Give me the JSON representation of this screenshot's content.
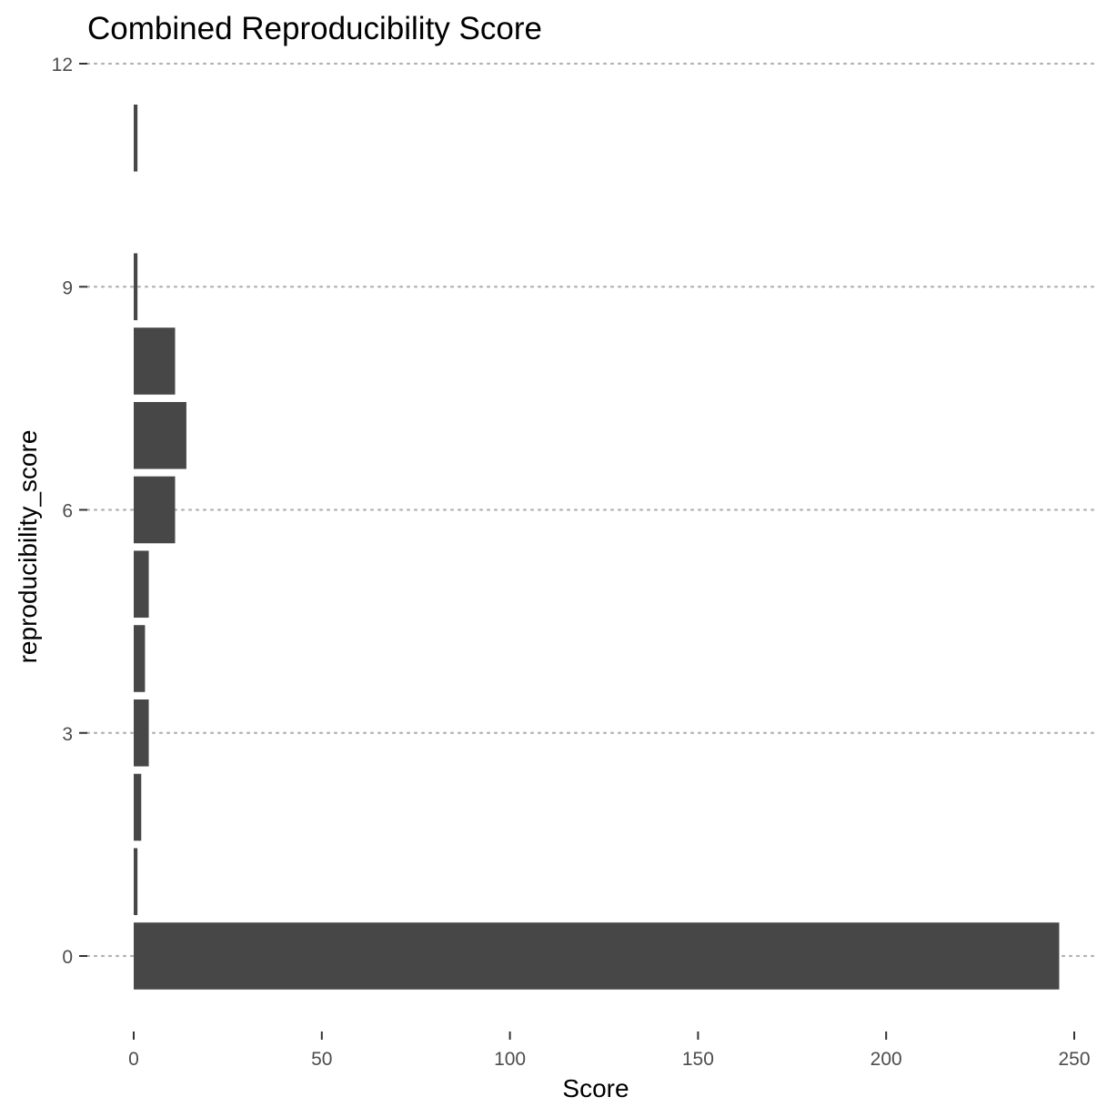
{
  "chart_data": {
    "type": "bar",
    "orientation": "horizontal",
    "title": "Combined Reproducibility Score",
    "xlabel": "Score",
    "ylabel": "reproducibility_score",
    "categories": [
      0,
      1,
      2,
      3,
      4,
      5,
      6,
      7,
      8,
      9,
      11
    ],
    "values": [
      246,
      1,
      2,
      4,
      3,
      4,
      11,
      14,
      11,
      1,
      1
    ],
    "xlim": [
      0,
      255
    ],
    "ylim": [
      -0.9,
      12
    ],
    "x_ticks": [
      0,
      50,
      100,
      150,
      200,
      250
    ],
    "y_ticks": [
      0,
      3,
      6,
      9,
      12
    ],
    "grid": "horizontal-dotted",
    "bar_color": "#474747",
    "grid_color": "#b3b3b3",
    "tick_color": "#333333",
    "tick_label_color": "#4d4d4d"
  }
}
